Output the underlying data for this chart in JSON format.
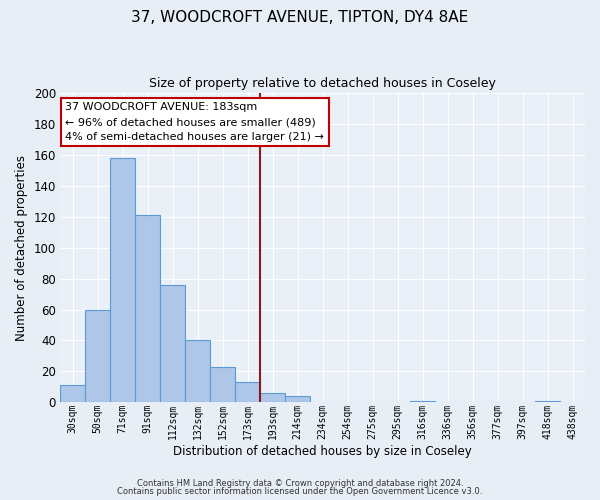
{
  "title": "37, WOODCROFT AVENUE, TIPTON, DY4 8AE",
  "subtitle": "Size of property relative to detached houses in Coseley",
  "xlabel": "Distribution of detached houses by size in Coseley",
  "ylabel": "Number of detached properties",
  "bin_labels": [
    "30sqm",
    "50sqm",
    "71sqm",
    "91sqm",
    "112sqm",
    "132sqm",
    "152sqm",
    "173sqm",
    "193sqm",
    "214sqm",
    "234sqm",
    "254sqm",
    "275sqm",
    "295sqm",
    "316sqm",
    "336sqm",
    "356sqm",
    "377sqm",
    "397sqm",
    "418sqm",
    "438sqm"
  ],
  "bar_values": [
    11,
    60,
    158,
    121,
    76,
    40,
    23,
    13,
    6,
    4,
    0,
    0,
    0,
    0,
    1,
    0,
    0,
    0,
    0,
    1,
    0
  ],
  "bar_color": "#aec6e8",
  "bar_edge_color": "#5b9bd5",
  "vline_x": 7.5,
  "vline_color": "#8b1a1a",
  "ylim": [
    0,
    200
  ],
  "yticks": [
    0,
    20,
    40,
    60,
    80,
    100,
    120,
    140,
    160,
    180,
    200
  ],
  "annotation_title": "37 WOODCROFT AVENUE: 183sqm",
  "annotation_line1": "← 96% of detached houses are smaller (489)",
  "annotation_line2": "4% of semi-detached houses are larger (21) →",
  "annotation_box_color": "#ffffff",
  "annotation_border_color": "#c00000",
  "footer_line1": "Contains HM Land Registry data © Crown copyright and database right 2024.",
  "footer_line2": "Contains public sector information licensed under the Open Government Licence v3.0.",
  "bg_color": "#e8eef5",
  "plot_bg_color": "#eaf0f8",
  "grid_color": "#ffffff",
  "title_fontsize": 11,
  "subtitle_fontsize": 9
}
